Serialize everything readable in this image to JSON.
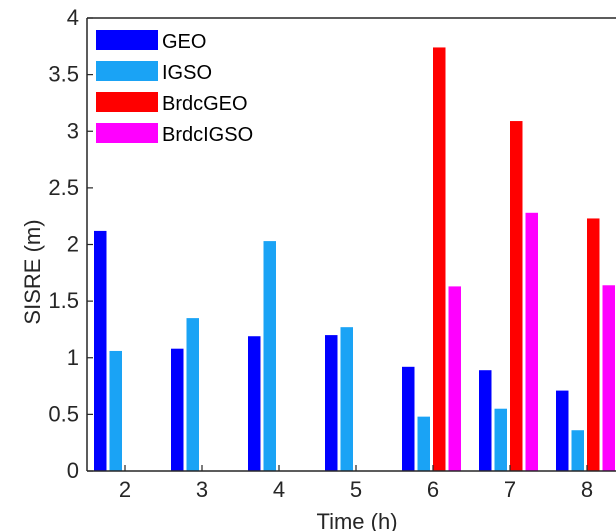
{
  "chart_data": {
    "type": "bar",
    "categories": [
      "2",
      "3",
      "4",
      "5",
      "6",
      "7",
      "8"
    ],
    "series": [
      {
        "name": "GEO",
        "color": "#0000FF",
        "values": [
          2.12,
          1.08,
          1.19,
          1.2,
          0.92,
          0.89,
          0.71
        ]
      },
      {
        "name": "IGSO",
        "color": "#1AA3F5",
        "values": [
          1.06,
          1.35,
          2.03,
          1.27,
          0.48,
          0.55,
          0.36
        ]
      },
      {
        "name": "BrdcGEO",
        "color": "#FF0000",
        "values": [
          null,
          null,
          null,
          null,
          3.74,
          3.09,
          2.23
        ]
      },
      {
        "name": "BrdcIGSO",
        "color": "#FF00FF",
        "values": [
          null,
          null,
          null,
          null,
          1.63,
          2.28,
          1.64
        ]
      }
    ],
    "xlabel": "Time (h)",
    "ylabel": "SISRE (m)",
    "ylim": [
      0,
      4
    ],
    "yticks": [
      "0",
      "0.5",
      "1",
      "1.5",
      "2",
      "2.5",
      "3",
      "3.5",
      "4"
    ],
    "legend_position": "top-left",
    "grid": false
  }
}
